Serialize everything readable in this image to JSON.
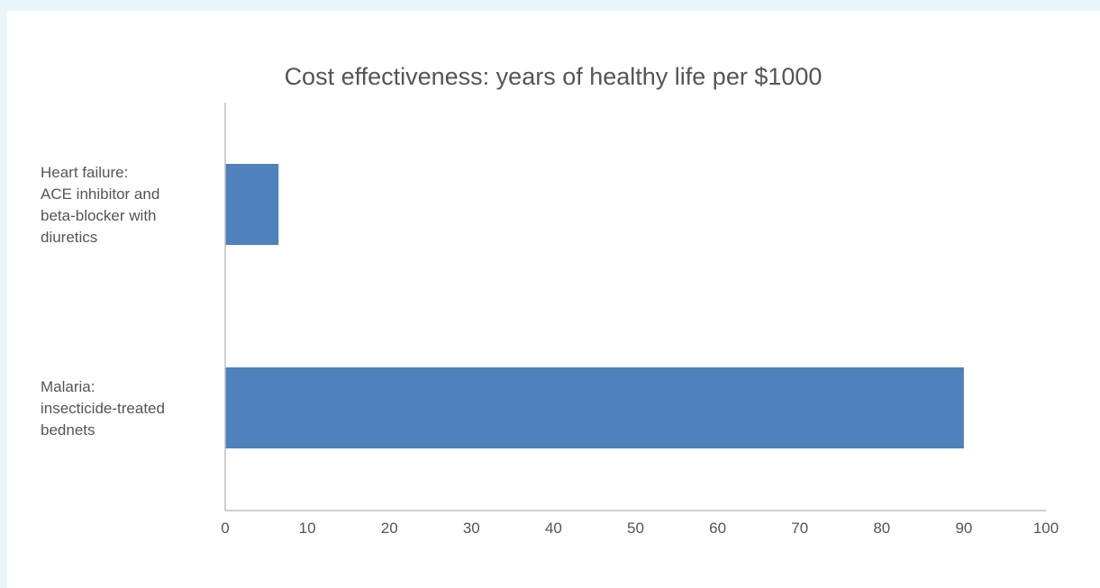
{
  "chart_data": {
    "type": "bar",
    "orientation": "horizontal",
    "title": "Cost effectiveness: years of healthy life per $1000",
    "xlabel": "",
    "ylabel": "",
    "categories": [
      "Heart failure: ACE inhibitor and beta-blocker with diuretics",
      "Malaria: insecticide-treated bednets"
    ],
    "category_lines": [
      [
        "Heart failure:",
        "ACE inhibitor and",
        "beta-blocker with",
        "diuretics"
      ],
      [
        "Malaria:",
        "insecticide-treated",
        "bednets"
      ]
    ],
    "values": [
      6.5,
      90
    ],
    "xlim": [
      0,
      100
    ],
    "ticks": [
      "0",
      "10",
      "20",
      "30",
      "40",
      "50",
      "60",
      "70",
      "80",
      "90",
      "100"
    ],
    "grid": false,
    "legend": "none",
    "bar_color": "#4f81bd"
  }
}
